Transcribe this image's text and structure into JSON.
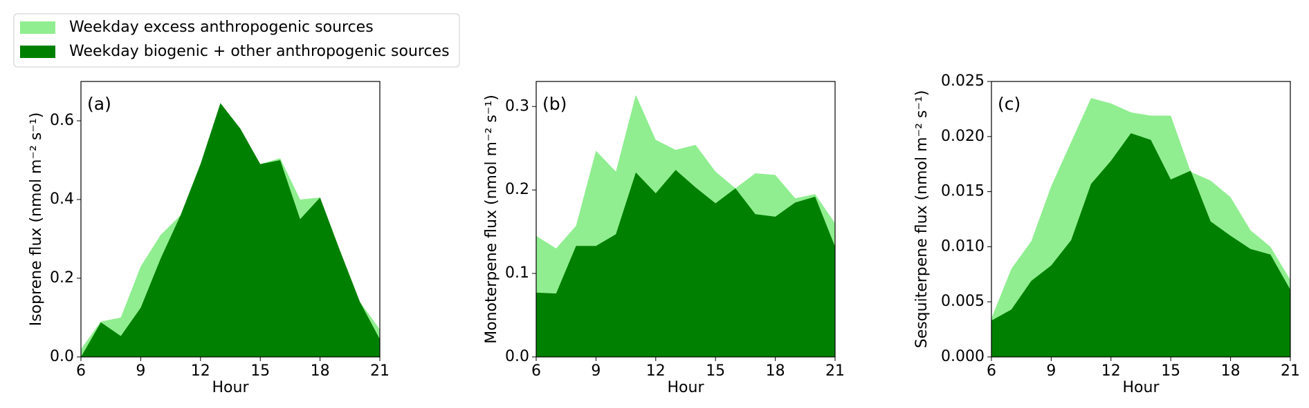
{
  "chart_data": [
    {
      "type": "area",
      "annotation": "(a)",
      "xlabel": "Hour",
      "ylabel": "Isoprene flux (nmol m⁻² s⁻¹)",
      "x": [
        6,
        7,
        8,
        9,
        10,
        11,
        12,
        13,
        14,
        15,
        16,
        17,
        18,
        19,
        20,
        21
      ],
      "series": [
        {
          "name": "Weekday excess anthropogenic sources",
          "color": "#90ee90",
          "values": [
            0.02,
            0.09,
            0.1,
            0.23,
            0.31,
            0.36,
            0.49,
            0.645,
            0.58,
            0.49,
            0.505,
            0.4,
            0.405,
            0.27,
            0.14,
            0.07
          ]
        },
        {
          "name": "Weekday biogenic + other anthropogenic sources",
          "color": "#008000",
          "values": [
            0.0,
            0.088,
            0.053,
            0.125,
            0.25,
            0.36,
            0.49,
            0.645,
            0.58,
            0.49,
            0.5,
            0.35,
            0.405,
            0.27,
            0.14,
            0.045
          ]
        }
      ],
      "xlim": [
        6,
        21
      ],
      "xticks": [
        6,
        9,
        12,
        15,
        18,
        21
      ],
      "ylim": [
        0,
        0.7
      ],
      "yticks": [
        {
          "value": 0,
          "label": "0.0"
        },
        0.2,
        0.4,
        0.6
      ],
      "legend": "upper left"
    },
    {
      "type": "area",
      "annotation": "(b)",
      "xlabel": "Hour",
      "ylabel": "Monoterpene flux (nmol m⁻² s⁻¹)",
      "x": [
        6,
        7,
        8,
        9,
        10,
        11,
        12,
        13,
        14,
        15,
        16,
        17,
        18,
        19,
        20,
        21
      ],
      "series": [
        {
          "name": "Weekday excess anthropogenic sources",
          "color": "#90ee90",
          "values": [
            0.145,
            0.13,
            0.157,
            0.247,
            0.222,
            0.314,
            0.26,
            0.248,
            0.254,
            0.222,
            0.202,
            0.22,
            0.218,
            0.19,
            0.195,
            0.16
          ]
        },
        {
          "name": "Weekday biogenic + other anthropogenic sources",
          "color": "#008000",
          "values": [
            0.077,
            0.076,
            0.133,
            0.133,
            0.147,
            0.221,
            0.196,
            0.224,
            0.203,
            0.184,
            0.202,
            0.171,
            0.168,
            0.185,
            0.192,
            0.132
          ]
        }
      ],
      "xlim": [
        6,
        21
      ],
      "xticks": [
        6,
        9,
        12,
        15,
        18,
        21
      ],
      "ylim": [
        0,
        0.33
      ],
      "yticks": [
        {
          "value": 0,
          "label": "0.0"
        },
        0.1,
        0.2,
        0.3
      ]
    },
    {
      "type": "area",
      "annotation": "(c)",
      "xlabel": "Hour",
      "ylabel": "Sesquiterpene flux (nmol m⁻² s⁻¹)",
      "x": [
        6,
        7,
        8,
        9,
        10,
        11,
        12,
        13,
        14,
        15,
        16,
        17,
        18,
        19,
        20,
        21
      ],
      "series": [
        {
          "name": "Weekday excess anthropogenic sources",
          "color": "#90ee90",
          "values": [
            0.0035,
            0.008,
            0.0105,
            0.0155,
            0.0195,
            0.0235,
            0.023,
            0.0222,
            0.0219,
            0.0219,
            0.0168,
            0.016,
            0.0145,
            0.0115,
            0.01,
            0.007
          ]
        },
        {
          "name": "Weekday biogenic + other anthropogenic sources",
          "color": "#008000",
          "values": [
            0.0033,
            0.0043,
            0.0069,
            0.0083,
            0.0106,
            0.0157,
            0.0178,
            0.0203,
            0.0197,
            0.0161,
            0.0169,
            0.0123,
            0.011,
            0.0098,
            0.0093,
            0.0061
          ]
        }
      ],
      "xlim": [
        6,
        21
      ],
      "xticks": [
        6,
        9,
        12,
        15,
        18,
        21
      ],
      "ylim": [
        0,
        0.025
      ],
      "yticks": [
        {
          "value": 0,
          "label": "0.000"
        },
        {
          "value": 0.005,
          "label": "0.005"
        },
        {
          "value": 0.01,
          "label": "0.010"
        },
        {
          "value": 0.015,
          "label": "0.015"
        },
        {
          "value": 0.02,
          "label": "0.020"
        },
        {
          "value": 0.025,
          "label": "0.025"
        }
      ]
    }
  ]
}
